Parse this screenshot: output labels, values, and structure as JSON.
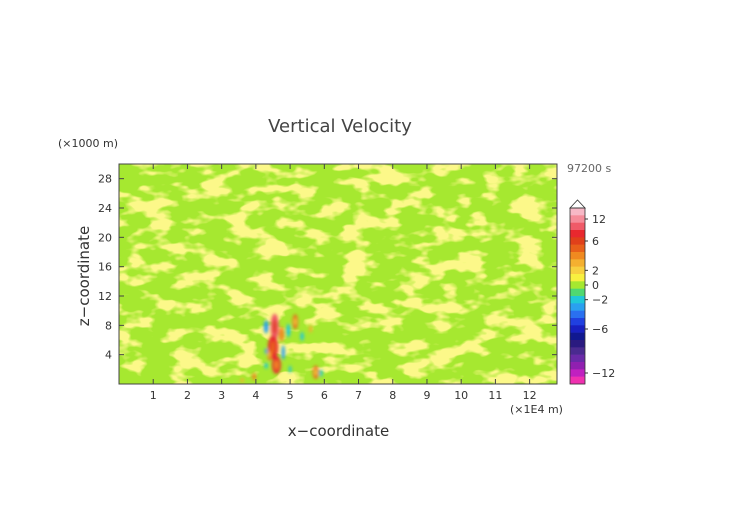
{
  "chart_data": {
    "type": "heatmap",
    "title": "Vertical Velocity",
    "xlabel": "x−coordinate",
    "ylabel": "z−coordinate",
    "x_unit": "(×1E4 m)",
    "y_unit": "(×1000 m)",
    "time_label": "97200 s",
    "xlim": [
      0,
      12.8
    ],
    "ylim": [
      0,
      30
    ],
    "x_ticks": [
      "1",
      "2",
      "3",
      "4",
      "5",
      "6",
      "7",
      "8",
      "9",
      "10",
      "11",
      "12"
    ],
    "y_ticks": [
      "4",
      "8",
      "12",
      "16",
      "20",
      "24",
      "28"
    ],
    "colorbar": {
      "ticks": [
        "12",
        "6",
        "2",
        "0",
        "−2",
        "−6",
        "−12"
      ],
      "levels": [
        {
          "value": 13,
          "color": "#f7b8c6"
        },
        {
          "value": 12,
          "color": "#f58c9a"
        },
        {
          "value": 10,
          "color": "#f05a68"
        },
        {
          "value": 8,
          "color": "#e8282e"
        },
        {
          "value": 6,
          "color": "#e0401a"
        },
        {
          "value": 5,
          "color": "#e8601a"
        },
        {
          "value": 4,
          "color": "#f08a20"
        },
        {
          "value": 3,
          "color": "#f4b030"
        },
        {
          "value": 2,
          "color": "#f7d040"
        },
        {
          "value": 1,
          "color": "#f8f040"
        },
        {
          "value": 0,
          "color": "#a6e830"
        },
        {
          "value": -1,
          "color": "#50d870"
        },
        {
          "value": -2,
          "color": "#20c8d8"
        },
        {
          "value": -3,
          "color": "#2aa0f0"
        },
        {
          "value": -4,
          "color": "#2a70f0"
        },
        {
          "value": -5,
          "color": "#2040e0"
        },
        {
          "value": -6,
          "color": "#1820c0"
        },
        {
          "value": -7,
          "color": "#101890"
        },
        {
          "value": -8,
          "color": "#2a1a80"
        },
        {
          "value": -9,
          "color": "#4a2a90"
        },
        {
          "value": -10,
          "color": "#6a2aa8"
        },
        {
          "value": -11,
          "color": "#9020b0"
        },
        {
          "value": -12,
          "color": "#c020c0"
        },
        {
          "value": -13,
          "color": "#f030b0"
        }
      ]
    },
    "field_description_values": {
      "background_range": [
        -1,
        1
      ],
      "max_updraft_approx": 9,
      "min_downdraft_approx": -4,
      "active_region_x": [
        3.5,
        6.0
      ],
      "active_region_z": [
        0,
        10
      ]
    }
  }
}
